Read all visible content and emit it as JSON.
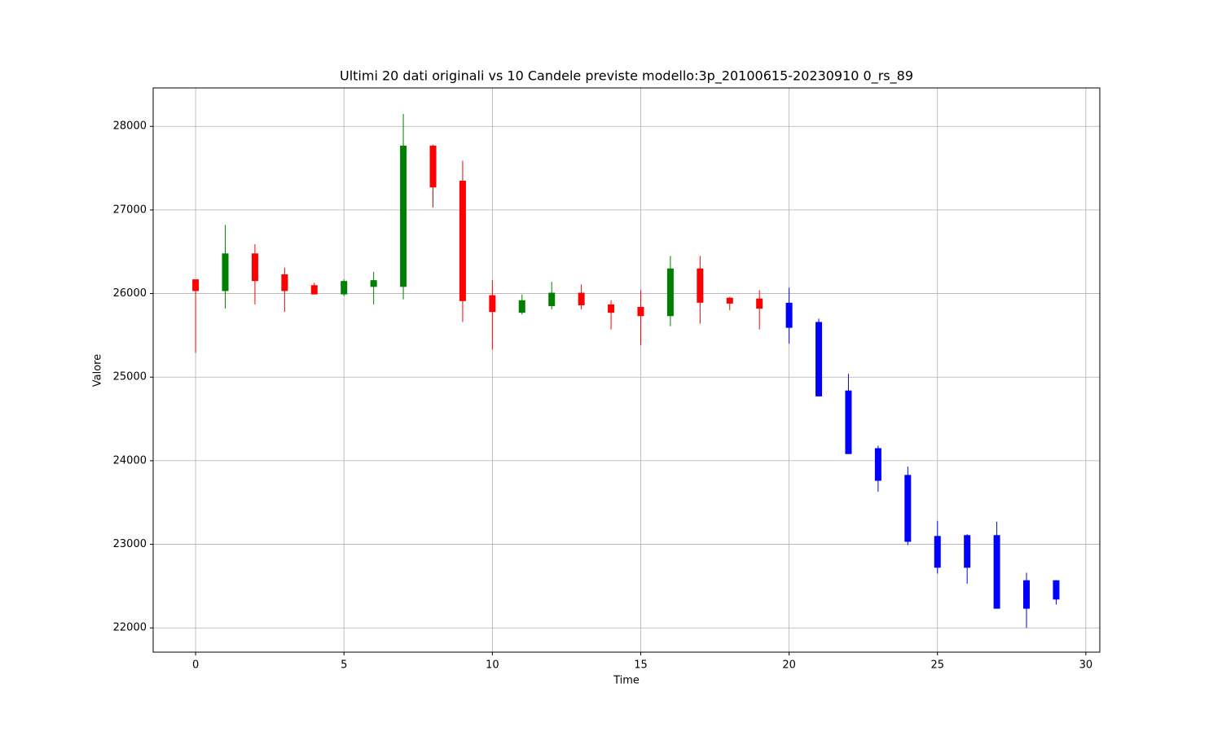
{
  "chart_data": {
    "type": "candlestick",
    "title": "Ultimi 20 dati originali vs 10 Candele previste modello:3p_20100615-20230910 0_rs_89",
    "x_label": "Time",
    "y_label": "Valore",
    "xlim": [
      -1.43,
      30.47
    ],
    "ylim": [
      21710,
      28460
    ],
    "xticks": [
      0,
      5,
      10,
      15,
      20,
      25,
      30
    ],
    "yticks": [
      22000,
      23000,
      24000,
      25000,
      26000,
      27000,
      28000
    ],
    "grid": true,
    "series": [
      {
        "up_color": "green",
        "down_color": "red",
        "x": [
          0,
          1,
          2,
          3,
          4,
          5,
          6,
          7,
          8,
          9,
          10,
          11,
          12,
          13,
          14,
          15,
          16,
          17,
          18,
          19
        ],
        "open": [
          26170,
          26030,
          26480,
          26230,
          26100,
          25990,
          26080,
          26080,
          27770,
          27350,
          25980,
          25770,
          25850,
          26010,
          25870,
          25840,
          25730,
          26300,
          25950,
          25940
        ],
        "high": [
          26170,
          26820,
          26590,
          26310,
          26130,
          26170,
          26260,
          28150,
          27780,
          27590,
          26160,
          25990,
          26140,
          26110,
          25920,
          26040,
          26450,
          26450,
          25960,
          26040
        ],
        "low": [
          25290,
          25820,
          25870,
          25780,
          25990,
          25970,
          25870,
          25930,
          27030,
          25660,
          25330,
          25750,
          25810,
          25810,
          25570,
          25380,
          25610,
          25640,
          25800,
          25570
        ],
        "close": [
          26030,
          26480,
          26150,
          26030,
          25990,
          26150,
          26160,
          27770,
          27270,
          25910,
          25780,
          25920,
          26010,
          25860,
          25770,
          25730,
          26300,
          25890,
          25880,
          25820
        ]
      },
      {
        "color": "blue",
        "x": [
          20,
          21,
          22,
          23,
          24,
          25,
          26,
          27,
          28,
          29
        ],
        "open": [
          25890,
          25660,
          24840,
          24150,
          23830,
          23100,
          23110,
          23110,
          22570,
          22570
        ],
        "high": [
          26070,
          25700,
          25040,
          24180,
          23930,
          23280,
          23120,
          23270,
          22660,
          22570
        ],
        "low": [
          25400,
          24770,
          24080,
          23630,
          22990,
          22650,
          22530,
          22230,
          22000,
          22280
        ],
        "close": [
          25590,
          24770,
          24080,
          23760,
          23030,
          22720,
          22720,
          22230,
          22230,
          22340
        ]
      }
    ]
  }
}
